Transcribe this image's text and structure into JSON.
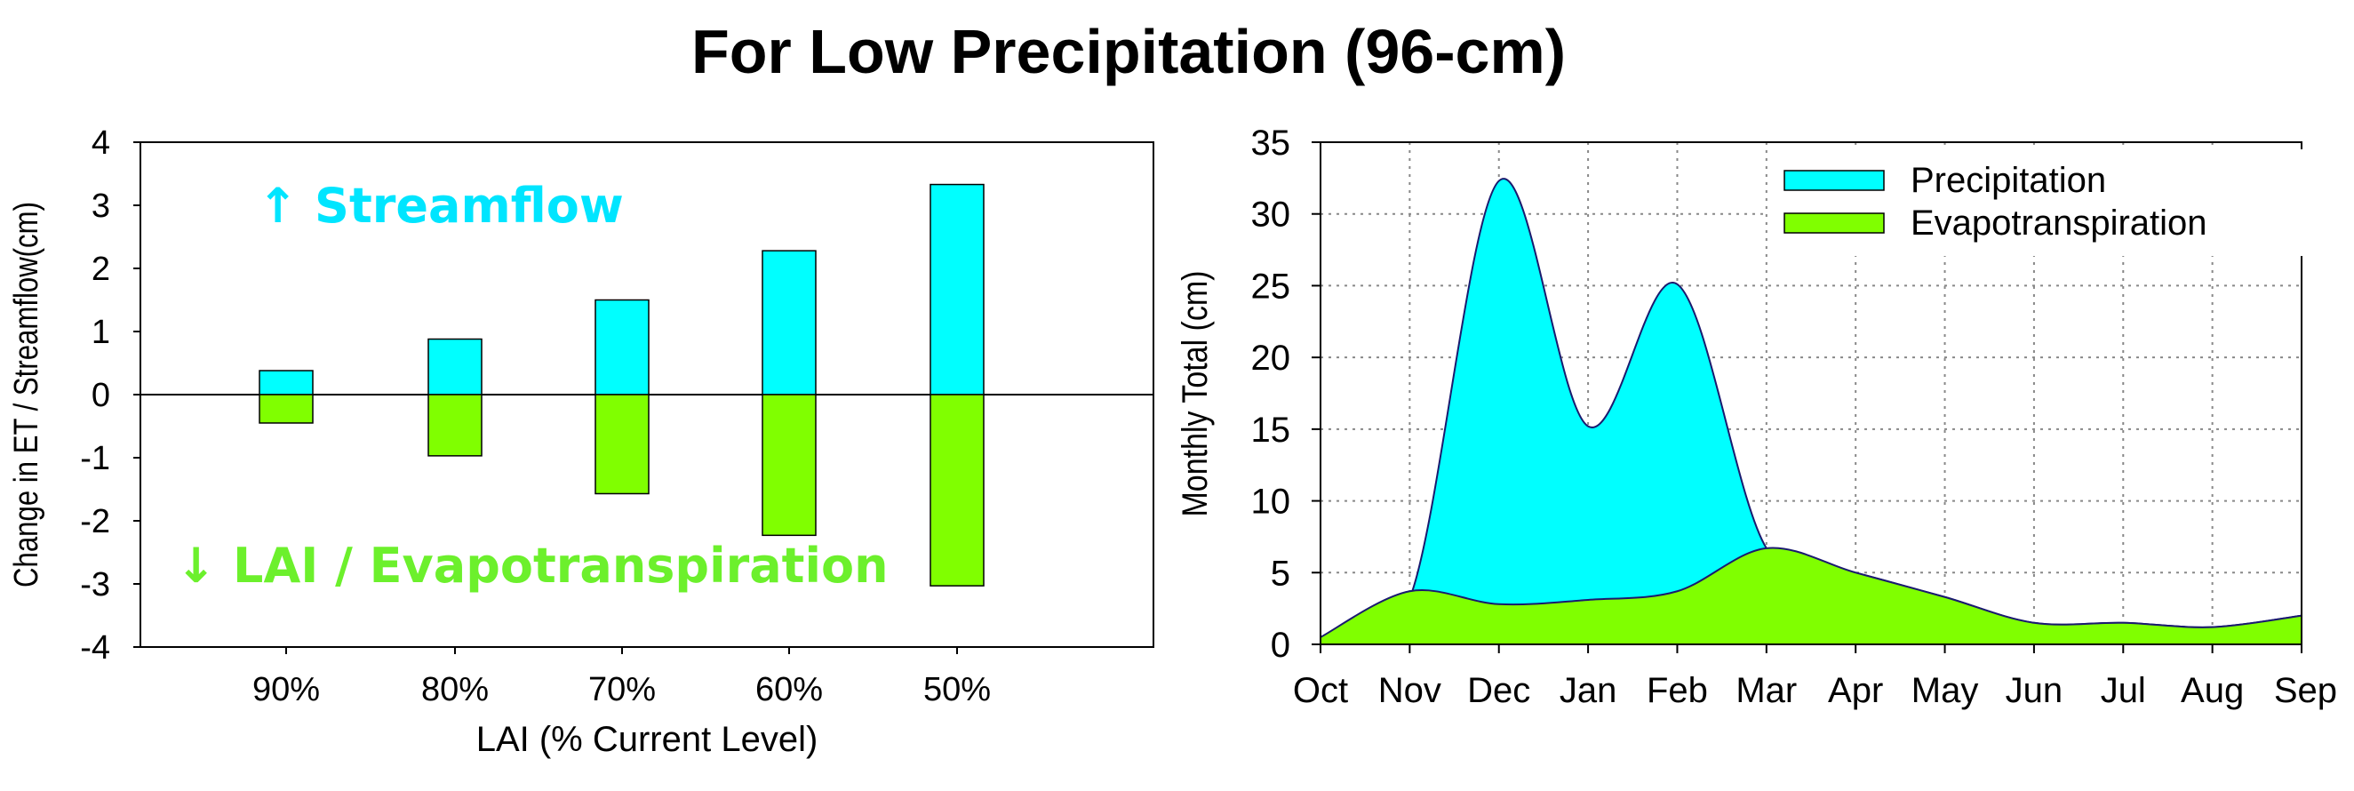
{
  "page_title": "For Low Precipitation (96-cm)",
  "colors": {
    "streamflow": "#00ffff",
    "evapotranspiration": "#80ff00",
    "annotation_up": "#00e5ff",
    "annotation_down": "#6cf02c"
  },
  "chart_data": [
    {
      "type": "bar",
      "categories": [
        "90%",
        "80%",
        "70%",
        "60%",
        "50%"
      ],
      "series": [
        {
          "values": [
            0.38,
            0.88,
            1.5,
            2.28,
            3.33
          ],
          "color": "#00ffff"
        },
        {
          "values": [
            -0.45,
            -0.97,
            -1.57,
            -2.23,
            -3.03
          ],
          "color": "#80ff00"
        }
      ],
      "ylim": [
        -4,
        4
      ],
      "yticks": [
        "4",
        "3",
        "2",
        "1",
        "0",
        "-1",
        "-2",
        "-3",
        "-4"
      ],
      "xlabel": "LAI (% Current Level)",
      "ylabel": "Change in ET / Streamflow(cm)",
      "annotations": [
        {
          "text": "↑ Streamflow",
          "color": "#00e5ff"
        },
        {
          "text": "↓ LAI / Evapotranspiration",
          "color": "#6cf02c"
        }
      ],
      "grid": false
    },
    {
      "type": "area",
      "x": [
        "Oct",
        "Nov",
        "Dec",
        "Jan",
        "Feb",
        "Mar",
        "Apr",
        "May",
        "Jun",
        "Jul",
        "Aug",
        "Sep"
      ],
      "series": [
        {
          "name": "Precipitation",
          "values": [
            0.5,
            3.2,
            32.3,
            15.2,
            25.1,
            6.7,
            5.0,
            3.3,
            1.5,
            1.5,
            1.2,
            2.0
          ],
          "color": "#00ffff"
        },
        {
          "name": "Evapotranspiration",
          "values": [
            0.5,
            3.7,
            2.8,
            3.1,
            3.7,
            6.7,
            5.0,
            3.3,
            1.5,
            1.5,
            1.2,
            2.0
          ],
          "color": "#80ff00"
        }
      ],
      "ylim": [
        0,
        35
      ],
      "yticks": [
        "35",
        "30",
        "25",
        "20",
        "15",
        "10",
        "5",
        "0"
      ],
      "ylabel": "Monthly Total (cm)",
      "legend": "top-right",
      "grid": true
    }
  ]
}
